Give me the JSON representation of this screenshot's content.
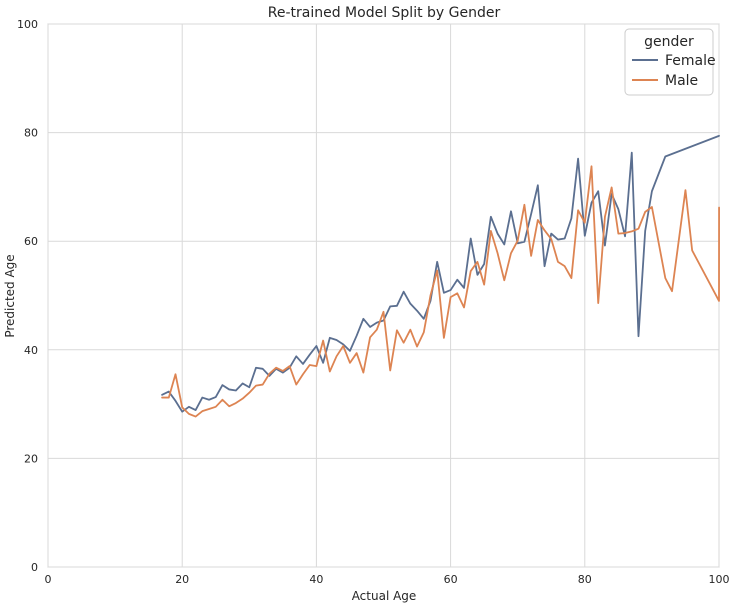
{
  "chart_data": {
    "type": "line",
    "title": "Re-trained Model Split by Gender",
    "xlabel": "Actual Age",
    "ylabel": "Predicted Age",
    "xlim": [
      0,
      100
    ],
    "ylim": [
      0,
      100
    ],
    "xticks": [
      "0",
      "20",
      "40",
      "60",
      "80",
      "100"
    ],
    "yticks": [
      "0",
      "20",
      "40",
      "60",
      "80",
      "100"
    ],
    "grid": true,
    "legend": {
      "title": "gender",
      "placement": "top-right"
    },
    "series": [
      {
        "name": "Female",
        "color": "#5b6f90",
        "points": [
          [
            17,
            31.7
          ],
          [
            18,
            32.3
          ],
          [
            19,
            30.6
          ],
          [
            20,
            28.6
          ],
          [
            21,
            29.5
          ],
          [
            22,
            28.9
          ],
          [
            23,
            31.2
          ],
          [
            24,
            30.8
          ],
          [
            25,
            31.3
          ],
          [
            26,
            33.5
          ],
          [
            27,
            32.7
          ],
          [
            28,
            32.5
          ],
          [
            29,
            33.8
          ],
          [
            30,
            33.1
          ],
          [
            31,
            36.7
          ],
          [
            32,
            36.5
          ],
          [
            33,
            35.2
          ],
          [
            34,
            36.5
          ],
          [
            35,
            35.8
          ],
          [
            36,
            36.7
          ],
          [
            37,
            38.8
          ],
          [
            38,
            37.4
          ],
          [
            39,
            39.1
          ],
          [
            40,
            40.7
          ],
          [
            41,
            37.6
          ],
          [
            42,
            42.2
          ],
          [
            43,
            41.8
          ],
          [
            44,
            41.0
          ],
          [
            45,
            39.8
          ],
          [
            46,
            42.6
          ],
          [
            47,
            45.7
          ],
          [
            48,
            44.2
          ],
          [
            49,
            45.0
          ],
          [
            50,
            45.4
          ],
          [
            51,
            48.0
          ],
          [
            52,
            48.1
          ],
          [
            53,
            50.7
          ],
          [
            54,
            48.5
          ],
          [
            55,
            47.2
          ],
          [
            56,
            45.7
          ],
          [
            57,
            49.0
          ],
          [
            58,
            56.2
          ],
          [
            59,
            50.5
          ],
          [
            60,
            51.0
          ],
          [
            61,
            52.9
          ],
          [
            62,
            51.4
          ],
          [
            63,
            60.5
          ],
          [
            64,
            53.8
          ],
          [
            65,
            55.8
          ],
          [
            66,
            64.5
          ],
          [
            67,
            61.4
          ],
          [
            68,
            59.4
          ],
          [
            69,
            65.5
          ],
          [
            70,
            59.6
          ],
          [
            71,
            59.9
          ],
          [
            72,
            65.0
          ],
          [
            73,
            70.3
          ],
          [
            74,
            55.4
          ],
          [
            75,
            61.4
          ],
          [
            76,
            60.3
          ],
          [
            77,
            60.5
          ],
          [
            78,
            64.2
          ],
          [
            79,
            75.2
          ],
          [
            80,
            61.0
          ],
          [
            81,
            67.1
          ],
          [
            82,
            69.2
          ],
          [
            83,
            59.2
          ],
          [
            84,
            68.7
          ],
          [
            85,
            65.9
          ],
          [
            86,
            60.9
          ],
          [
            87,
            76.3
          ],
          [
            88,
            42.5
          ],
          [
            89,
            61.9
          ],
          [
            90,
            69.2
          ],
          [
            92,
            75.6
          ],
          [
            100,
            79.4
          ]
        ]
      },
      {
        "name": "Male",
        "color": "#dd8452",
        "points": [
          [
            17,
            31.2
          ],
          [
            18,
            31.2
          ],
          [
            19,
            35.5
          ],
          [
            20,
            29.4
          ],
          [
            21,
            28.2
          ],
          [
            22,
            27.7
          ],
          [
            23,
            28.7
          ],
          [
            24,
            29.1
          ],
          [
            25,
            29.5
          ],
          [
            26,
            30.8
          ],
          [
            27,
            29.6
          ],
          [
            28,
            30.2
          ],
          [
            29,
            31.0
          ],
          [
            30,
            32.1
          ],
          [
            31,
            33.4
          ],
          [
            32,
            33.6
          ],
          [
            33,
            35.6
          ],
          [
            34,
            36.7
          ],
          [
            35,
            36.1
          ],
          [
            36,
            37.0
          ],
          [
            37,
            33.6
          ],
          [
            38,
            35.5
          ],
          [
            39,
            37.2
          ],
          [
            40,
            37.0
          ],
          [
            41,
            41.7
          ],
          [
            42,
            36.0
          ],
          [
            43,
            38.8
          ],
          [
            44,
            40.7
          ],
          [
            45,
            37.6
          ],
          [
            46,
            39.4
          ],
          [
            47,
            35.8
          ],
          [
            48,
            42.3
          ],
          [
            49,
            43.7
          ],
          [
            50,
            47.0
          ],
          [
            51,
            36.2
          ],
          [
            52,
            43.6
          ],
          [
            53,
            41.3
          ],
          [
            54,
            43.7
          ],
          [
            55,
            40.6
          ],
          [
            56,
            43.2
          ],
          [
            57,
            50.0
          ],
          [
            58,
            54.6
          ],
          [
            59,
            42.2
          ],
          [
            60,
            49.7
          ],
          [
            61,
            50.4
          ],
          [
            62,
            47.8
          ],
          [
            63,
            54.5
          ],
          [
            64,
            56.2
          ],
          [
            65,
            52.0
          ],
          [
            66,
            61.9
          ],
          [
            67,
            57.8
          ],
          [
            68,
            52.8
          ],
          [
            69,
            57.8
          ],
          [
            70,
            60.1
          ],
          [
            71,
            66.7
          ],
          [
            72,
            57.3
          ],
          [
            73,
            63.9
          ],
          [
            74,
            62.0
          ],
          [
            75,
            60.4
          ],
          [
            76,
            56.2
          ],
          [
            77,
            55.4
          ],
          [
            78,
            53.2
          ],
          [
            79,
            65.7
          ],
          [
            80,
            63.4
          ],
          [
            81,
            73.8
          ],
          [
            82,
            48.6
          ],
          [
            83,
            64.5
          ],
          [
            84,
            69.9
          ],
          [
            85,
            61.4
          ],
          [
            86,
            61.5
          ],
          [
            87,
            61.8
          ],
          [
            88,
            62.3
          ],
          [
            89,
            65.4
          ],
          [
            90,
            66.3
          ],
          [
            92,
            53.2
          ],
          [
            93,
            50.8
          ],
          [
            95,
            69.4
          ],
          [
            96,
            58.3
          ],
          [
            100,
            49.0
          ],
          [
            100.01,
            66.2
          ]
        ]
      }
    ]
  }
}
